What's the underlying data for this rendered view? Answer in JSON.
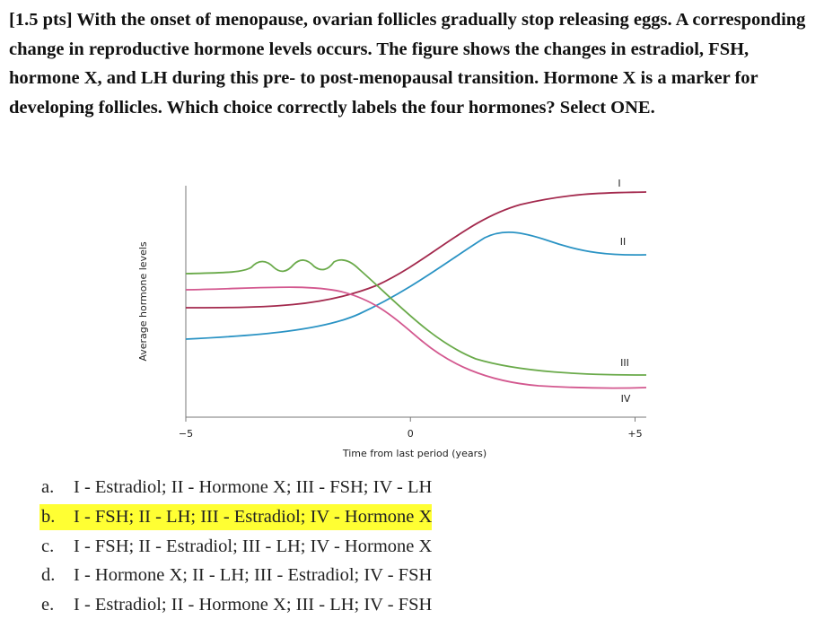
{
  "question": "[1.5 pts] With the onset of menopause, ovarian follicles gradually stop releasing eggs. A corresponding change in reproductive hormone levels occurs. The figure shows the changes in estradiol, FSH, hormone X, and LH during this pre- to post-menopausal transition. Hormone X is a marker for developing follicles. Which choice correctly labels the four hormones? Select ONE.",
  "figure": {
    "x_label": "Time from last period (years)",
    "y_label": "Average hormone levels",
    "xlim": [
      -5,
      5.25
    ],
    "xticks": [
      {
        "value": -5,
        "label": "−5"
      },
      0,
      {
        "value": 5,
        "label": "+5"
      }
    ],
    "curve_labels": [
      "I",
      "II",
      "III",
      "IV"
    ]
  },
  "choices": [
    {
      "letter": "a.",
      "text": "I - Estradiol; II - Hormone X; III - FSH; IV - LH"
    },
    {
      "letter": "b.",
      "text": "I - FSH; II - LH; III - Estradiol; IV - Hormone X"
    },
    {
      "letter": "c.",
      "text": "I - FSH; II - Estradiol; III - LH; IV - Hormone X"
    },
    {
      "letter": "d.",
      "text": "I - Hormone X; II - LH; III - Estradiol; IV - FSH"
    },
    {
      "letter": "e.",
      "text": "I - Estradiol; II - Hormone X; III - LH; IV - FSH"
    }
  ]
}
